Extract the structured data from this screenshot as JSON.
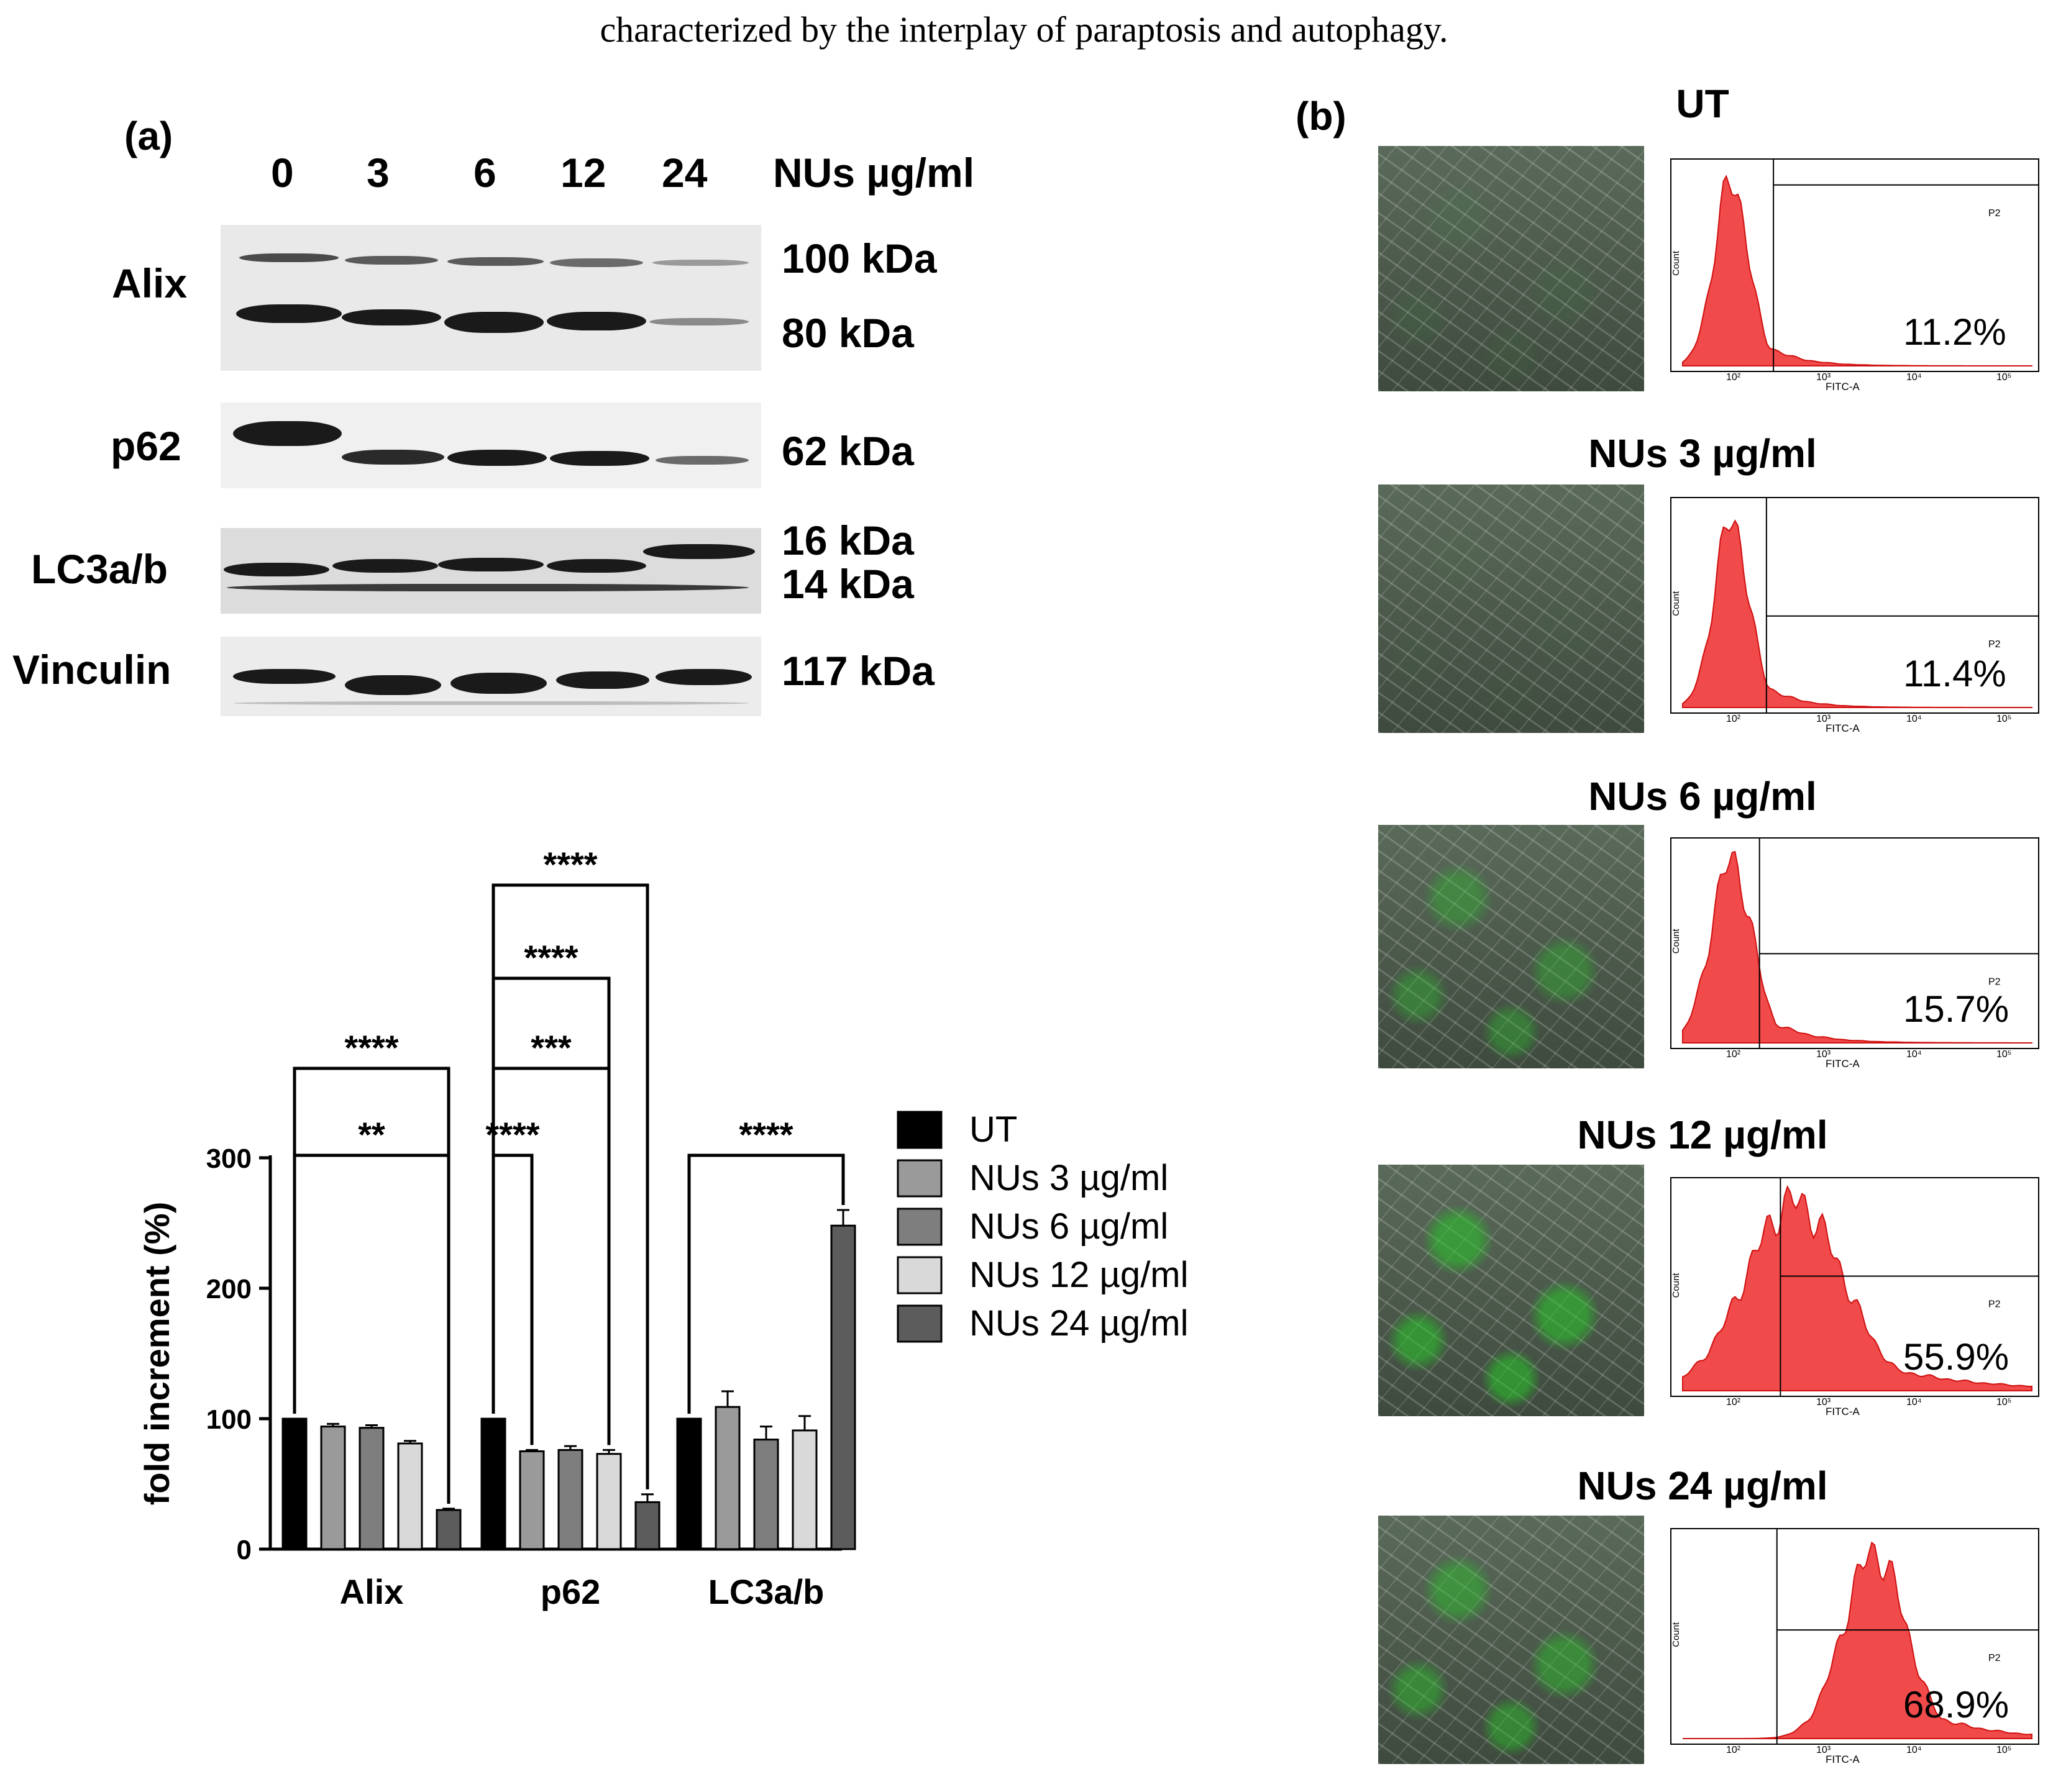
{
  "caption": "characterized by the interplay of paraptosis and autophagy.",
  "panel_a": {
    "label": "(a)",
    "western_blot": {
      "lanes": [
        "0",
        "3",
        "6",
        "12",
        "24"
      ],
      "unit_label": "NUs µg/ml",
      "rows": [
        {
          "name": "Alix",
          "kda": [
            "100 kDa",
            "80 kDa"
          ]
        },
        {
          "name": "p62",
          "kda": [
            "62 kDa"
          ]
        },
        {
          "name": "LC3a/b",
          "kda": [
            "16 kDa",
            "14 kDa"
          ]
        },
        {
          "name": "Vinculin",
          "kda": [
            "117 kDa"
          ]
        }
      ]
    }
  },
  "chart_data": {
    "type": "bar",
    "title": "",
    "xlabel": "",
    "ylabel": "fold increment (%)",
    "ylim": [
      0,
      300
    ],
    "yticks": [
      "0",
      "100",
      "200",
      "300"
    ],
    "categories": [
      "Alix",
      "p62",
      "LC3a/b"
    ],
    "series": [
      {
        "name": "UT",
        "color": "#000000",
        "values": [
          100,
          100,
          100
        ],
        "errors": [
          0,
          0,
          0
        ]
      },
      {
        "name": "NUs 3 µg/ml",
        "color": "#9a9a9a",
        "values": [
          94,
          75,
          109
        ],
        "errors": [
          2,
          1,
          12
        ]
      },
      {
        "name": "NUs 6 µg/ml",
        "color": "#7e7e7e",
        "values": [
          93,
          76,
          84
        ],
        "errors": [
          2,
          3,
          10
        ]
      },
      {
        "name": "NUs 12 µg/ml",
        "color": "#d9d9d9",
        "values": [
          81,
          73,
          91
        ],
        "errors": [
          2,
          3,
          11
        ]
      },
      {
        "name": "NUs 24 µg/ml",
        "color": "#5c5c5c",
        "values": [
          30,
          36,
          248
        ],
        "errors": [
          1,
          6,
          12
        ]
      }
    ],
    "significance": [
      {
        "category": "Alix",
        "from": "UT",
        "to": "NUs 24 µg/ml",
        "stars": "****",
        "level": 1
      },
      {
        "category": "Alix",
        "from": "UT",
        "to": "NUs 24 µg/ml",
        "stars": "**",
        "level": 0
      },
      {
        "category": "p62",
        "from": "UT",
        "to": "NUs 3 µg/ml",
        "stars": "****",
        "level": 0
      },
      {
        "category": "p62",
        "from": "UT",
        "to": "NUs 12 µg/ml",
        "stars": "***",
        "level": 1
      },
      {
        "category": "p62",
        "from": "UT",
        "to": "NUs 12 µg/ml",
        "stars": "****",
        "level": 2
      },
      {
        "category": "p62",
        "from": "UT",
        "to": "NUs 24 µg/ml",
        "stars": "****",
        "level": 3
      },
      {
        "category": "LC3a/b",
        "from": "UT",
        "to": "NUs 24 µg/ml",
        "stars": "****",
        "level": 0
      }
    ]
  },
  "panel_b": {
    "label": "(b)",
    "gate_label": "P2",
    "y_axis_label": "Count",
    "x_axis_label": "FITC-A",
    "log_ticks": [
      "10²",
      "10³",
      "10⁴",
      "10⁵"
    ],
    "conditions": [
      {
        "title": "UT",
        "percent": "11.2%",
        "fraction": 0.112
      },
      {
        "title": "NUs 3 µg/ml",
        "percent": "11.4%",
        "fraction": 0.114
      },
      {
        "title": "NUs 6 µg/ml",
        "percent": "15.7%",
        "fraction": 0.157
      },
      {
        "title": "NUs 12 µg/ml",
        "percent": "55.9%",
        "fraction": 0.559
      },
      {
        "title": "NUs 24 µg/ml",
        "percent": "68.9%",
        "fraction": 0.689
      }
    ]
  }
}
